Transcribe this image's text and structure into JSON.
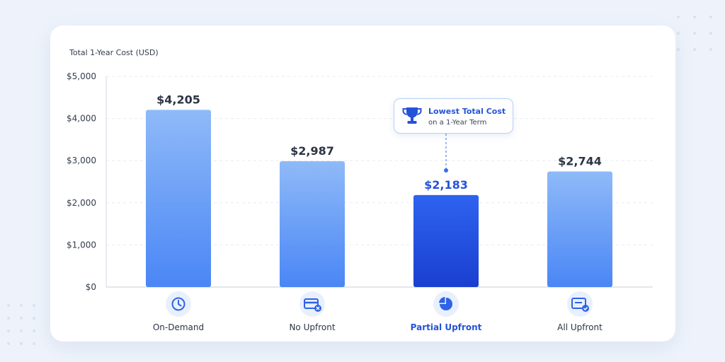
{
  "chart_data": {
    "type": "bar",
    "ylabel": "Total 1-Year Cost (USD)",
    "ylim": [
      0,
      5000
    ],
    "yticks": [
      "$0",
      "$1,000",
      "$2,000",
      "$3,000",
      "$4,000",
      "$5,000"
    ],
    "grid": true,
    "categories": [
      "On-Demand",
      "No Upfront",
      "Partial Upfront",
      "All Upfront"
    ],
    "values": [
      4205,
      2987,
      2183,
      2744
    ],
    "value_labels": [
      "$4,205",
      "$2,987",
      "$2,183",
      "$2,744"
    ],
    "category_icons": [
      "clock-icon",
      "credit-card-x-icon",
      "pie-chart-icon",
      "card-check-icon"
    ],
    "highlight_index": 2,
    "annotation": {
      "title": "Lowest Total Cost",
      "subtitle": "on a 1-Year Term",
      "icon": "trophy-icon"
    },
    "colors": {
      "bar_light": "#8fbaf8",
      "bar_dark": "#4a86f5",
      "highlight_top": "#2e63ef",
      "highlight_bottom": "#1a3fd0",
      "highlight_text": "#2553d8"
    }
  }
}
